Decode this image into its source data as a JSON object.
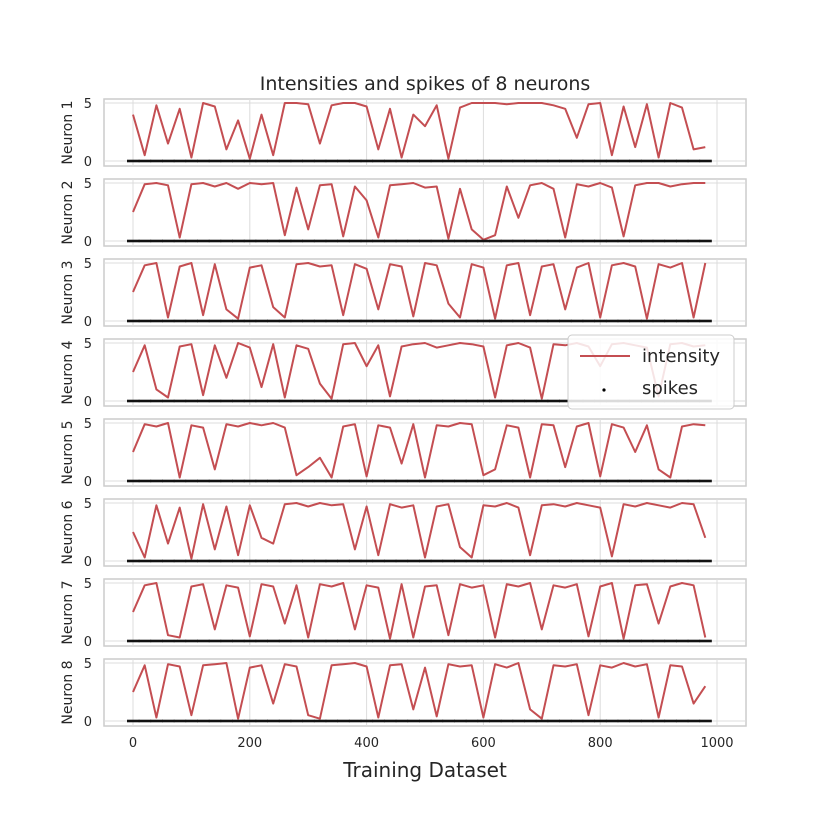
{
  "chart_data": {
    "type": "line",
    "title": "Intensities and spikes of 8 neurons",
    "xlabel": "Training Dataset",
    "xlim": [
      0,
      1000
    ],
    "ylim": [
      0,
      5
    ],
    "x_ticks": [
      0,
      200,
      400,
      600,
      800,
      1000
    ],
    "y_ticks": [
      0,
      5
    ],
    "grid": true,
    "legend": {
      "position": "right",
      "entries": [
        {
          "label": "intensity",
          "kind": "line",
          "color": "#c44e52"
        },
        {
          "label": "spikes",
          "kind": "marker",
          "color": "#000000"
        }
      ]
    },
    "colors": {
      "intensity": "#c44e52",
      "spikes": "#111111"
    },
    "panels": [
      {
        "ylabel": "Neuron 1",
        "x_start": 0,
        "x_step": 20,
        "intensity": [
          4.0,
          0.5,
          4.8,
          1.5,
          4.5,
          0.3,
          5.0,
          4.7,
          1.0,
          3.5,
          0.2,
          4.0,
          0.5,
          5.0,
          5.0,
          4.9,
          1.5,
          4.8,
          5.0,
          5.0,
          4.7,
          1.0,
          4.5,
          0.3,
          4.0,
          3.0,
          4.8,
          0.2,
          4.6,
          5.0,
          5.0,
          5.0,
          4.9,
          5.0,
          5.0,
          5.0,
          4.8,
          4.5,
          2.0,
          4.9,
          5.0,
          0.5,
          4.7,
          1.2,
          4.9,
          0.3,
          5.0,
          4.6,
          1.0,
          1.2
        ],
        "spikes": [
          0,
          0,
          0,
          0,
          0,
          0,
          0,
          0,
          0,
          0,
          0,
          0,
          0,
          0,
          0,
          0,
          0,
          0,
          0,
          0,
          0,
          0,
          0,
          0,
          0,
          0,
          0,
          0,
          0,
          0,
          0,
          0,
          0,
          0,
          0,
          0,
          0,
          0,
          0,
          0,
          0,
          0,
          0,
          0,
          0,
          0,
          0,
          0,
          0,
          0
        ]
      },
      {
        "ylabel": "Neuron 2",
        "x_start": 0,
        "x_step": 20,
        "intensity": [
          2.5,
          4.9,
          5.0,
          4.8,
          0.3,
          4.9,
          5.0,
          4.7,
          5.0,
          4.5,
          5.0,
          4.9,
          5.0,
          0.5,
          4.6,
          1.0,
          4.8,
          4.9,
          0.4,
          4.7,
          3.5,
          0.3,
          4.8,
          4.9,
          5.0,
          4.6,
          4.7,
          0.2,
          4.5,
          1.0,
          0.1,
          0.5,
          4.7,
          2.0,
          4.8,
          5.0,
          4.5,
          0.3,
          4.9,
          4.7,
          5.0,
          4.6,
          0.4,
          4.8,
          5.0,
          5.0,
          4.7,
          4.9,
          5.0,
          5.0
        ],
        "spikes": [
          0,
          0,
          0,
          0,
          0,
          0,
          0,
          0,
          0,
          0,
          0,
          0,
          0,
          0,
          0,
          0,
          0,
          0,
          0,
          0,
          0,
          0,
          0,
          0,
          0,
          0,
          0,
          0,
          0,
          0,
          0,
          0,
          0,
          0,
          0,
          0,
          0,
          0,
          0,
          0,
          0,
          0,
          0,
          0,
          0,
          0,
          0,
          0,
          0,
          0
        ]
      },
      {
        "ylabel": "Neuron 3",
        "x_start": 0,
        "x_step": 20,
        "intensity": [
          2.5,
          4.8,
          5.0,
          0.3,
          4.7,
          5.0,
          0.5,
          4.9,
          1.0,
          0.2,
          4.6,
          4.8,
          1.2,
          0.3,
          4.9,
          5.0,
          4.7,
          4.8,
          0.5,
          4.9,
          4.5,
          1.0,
          4.9,
          4.7,
          0.4,
          5.0,
          4.8,
          1.5,
          0.3,
          4.9,
          4.6,
          0.2,
          4.8,
          5.0,
          0.5,
          4.7,
          4.9,
          1.0,
          4.6,
          5.0,
          0.3,
          4.8,
          5.0,
          4.7,
          0.2,
          4.9,
          4.6,
          5.0,
          0.3,
          5.0
        ],
        "spikes": [
          0,
          0,
          0,
          0,
          0,
          0,
          0,
          0,
          0,
          0,
          0,
          0,
          0,
          0,
          0,
          0,
          0,
          0,
          0,
          0,
          0,
          0,
          0,
          0,
          0,
          0,
          0,
          0,
          0,
          0,
          0,
          0,
          0,
          0,
          0,
          0,
          0,
          0,
          0,
          0,
          0,
          0,
          0,
          0,
          0,
          0,
          0,
          0,
          0,
          0
        ]
      },
      {
        "ylabel": "Neuron 4",
        "x_start": 0,
        "x_step": 20,
        "intensity": [
          2.5,
          4.8,
          1.0,
          0.3,
          4.7,
          4.9,
          0.5,
          4.8,
          2.0,
          5.0,
          4.6,
          1.2,
          4.9,
          0.3,
          4.8,
          4.5,
          1.5,
          0.2,
          4.9,
          5.0,
          3.0,
          4.8,
          0.4,
          4.7,
          4.9,
          5.0,
          4.6,
          4.8,
          5.0,
          4.9,
          4.7,
          0.3,
          4.8,
          5.0,
          4.6,
          0.2,
          4.9,
          4.8,
          5.0,
          4.7,
          3.0,
          4.9,
          5.0,
          4.8,
          4.6,
          0.4,
          4.9,
          5.0,
          4.7,
          4.8
        ],
        "spikes": [
          0,
          0,
          0,
          0,
          0,
          0,
          0,
          0,
          0,
          0,
          0,
          0,
          0,
          0,
          0,
          0,
          0,
          0,
          0,
          0,
          0,
          0,
          0,
          0,
          0,
          0,
          0,
          0,
          0,
          0,
          0,
          0,
          0,
          0,
          0,
          0,
          0,
          0,
          0,
          0,
          0,
          0,
          0,
          0,
          0,
          0,
          0,
          0,
          0,
          0
        ]
      },
      {
        "ylabel": "Neuron 5",
        "x_start": 0,
        "x_step": 20,
        "intensity": [
          2.5,
          4.9,
          4.7,
          5.0,
          0.3,
          4.8,
          4.6,
          1.0,
          4.9,
          4.7,
          5.0,
          4.8,
          5.0,
          4.6,
          0.5,
          1.2,
          2.0,
          0.3,
          4.7,
          4.9,
          0.4,
          4.8,
          4.6,
          1.5,
          4.9,
          0.3,
          4.8,
          4.7,
          5.0,
          4.9,
          0.5,
          1.0,
          4.8,
          4.6,
          0.3,
          4.9,
          4.8,
          1.2,
          4.7,
          5.0,
          0.4,
          4.9,
          4.6,
          2.5,
          4.8,
          1.0,
          0.3,
          4.7,
          4.9,
          4.8
        ],
        "spikes": [
          0,
          0,
          0,
          0,
          0,
          0,
          0,
          0,
          0,
          0,
          0,
          0,
          0,
          0,
          0,
          0,
          0,
          0,
          0,
          0,
          0,
          0,
          0,
          0,
          0,
          0,
          0,
          0,
          0,
          0,
          0,
          0,
          0,
          0,
          0,
          0,
          0,
          0,
          0,
          0,
          0,
          0,
          0,
          0,
          0,
          0,
          0,
          0,
          0,
          0
        ]
      },
      {
        "ylabel": "Neuron 6",
        "x_start": 0,
        "x_step": 20,
        "intensity": [
          2.5,
          0.3,
          4.8,
          1.5,
          4.6,
          0.2,
          4.9,
          1.0,
          4.7,
          0.5,
          4.8,
          2.0,
          1.5,
          4.9,
          5.0,
          4.7,
          5.0,
          4.8,
          4.9,
          1.0,
          4.7,
          0.5,
          4.9,
          4.6,
          4.8,
          0.3,
          4.7,
          4.9,
          1.2,
          0.3,
          4.8,
          4.7,
          5.0,
          4.6,
          0.5,
          4.8,
          4.9,
          4.7,
          5.0,
          4.8,
          4.6,
          0.4,
          4.9,
          4.7,
          5.0,
          4.8,
          4.6,
          5.0,
          4.9,
          2.0
        ],
        "spikes": [
          0,
          0,
          0,
          0,
          0,
          0,
          0,
          0,
          0,
          0,
          0,
          0,
          0,
          0,
          0,
          0,
          0,
          0,
          0,
          0,
          0,
          0,
          0,
          0,
          0,
          0,
          0,
          0,
          0,
          0,
          0,
          0,
          0,
          0,
          0,
          0,
          0,
          0,
          0,
          0,
          0,
          0,
          0,
          0,
          0,
          0,
          0,
          0,
          0,
          0
        ]
      },
      {
        "ylabel": "Neuron 7",
        "x_start": 0,
        "x_step": 20,
        "intensity": [
          2.5,
          4.8,
          5.0,
          0.5,
          0.3,
          4.7,
          4.9,
          1.0,
          4.8,
          4.6,
          0.4,
          4.9,
          4.7,
          1.5,
          4.8,
          0.3,
          4.9,
          4.7,
          5.0,
          1.0,
          4.8,
          4.6,
          0.2,
          4.9,
          0.3,
          4.7,
          4.8,
          0.5,
          4.9,
          4.6,
          4.8,
          0.3,
          4.9,
          4.7,
          5.0,
          1.0,
          4.8,
          4.6,
          4.9,
          0.4,
          4.7,
          5.0,
          0.2,
          4.8,
          4.9,
          1.5,
          4.7,
          5.0,
          4.8,
          0.3
        ],
        "spikes": [
          0,
          0,
          0,
          0,
          0,
          0,
          0,
          0,
          0,
          0,
          0,
          0,
          0,
          0,
          0,
          0,
          0,
          0,
          0,
          0,
          0,
          0,
          0,
          0,
          0,
          0,
          0,
          0,
          0,
          0,
          0,
          0,
          0,
          0,
          0,
          0,
          0,
          0,
          0,
          0,
          0,
          0,
          0,
          0,
          0,
          0,
          0,
          0,
          0,
          0
        ]
      },
      {
        "ylabel": "Neuron 8",
        "x_start": 0,
        "x_step": 20,
        "intensity": [
          2.5,
          4.8,
          0.3,
          4.9,
          4.7,
          0.5,
          4.8,
          4.9,
          5.0,
          0.2,
          4.6,
          4.8,
          1.5,
          4.9,
          4.7,
          0.5,
          0.2,
          4.8,
          4.9,
          5.0,
          4.7,
          0.3,
          4.8,
          4.9,
          1.0,
          4.6,
          0.4,
          4.9,
          4.7,
          4.8,
          0.3,
          4.9,
          4.6,
          5.0,
          1.0,
          0.2,
          4.8,
          4.7,
          4.9,
          0.5,
          4.8,
          4.6,
          5.0,
          4.7,
          4.9,
          0.3,
          4.8,
          4.7,
          1.5,
          3.0
        ],
        "spikes": [
          0,
          0,
          0,
          0,
          0,
          0,
          0,
          0,
          0,
          0,
          0,
          0,
          0,
          0,
          0,
          0,
          0,
          0,
          0,
          0,
          0,
          0,
          0,
          0,
          0,
          0,
          0,
          0,
          0,
          0,
          0,
          0,
          0,
          0,
          0,
          0,
          0,
          0,
          0,
          0,
          0,
          0,
          0,
          0,
          0,
          0,
          0,
          0,
          0,
          0
        ]
      }
    ]
  }
}
